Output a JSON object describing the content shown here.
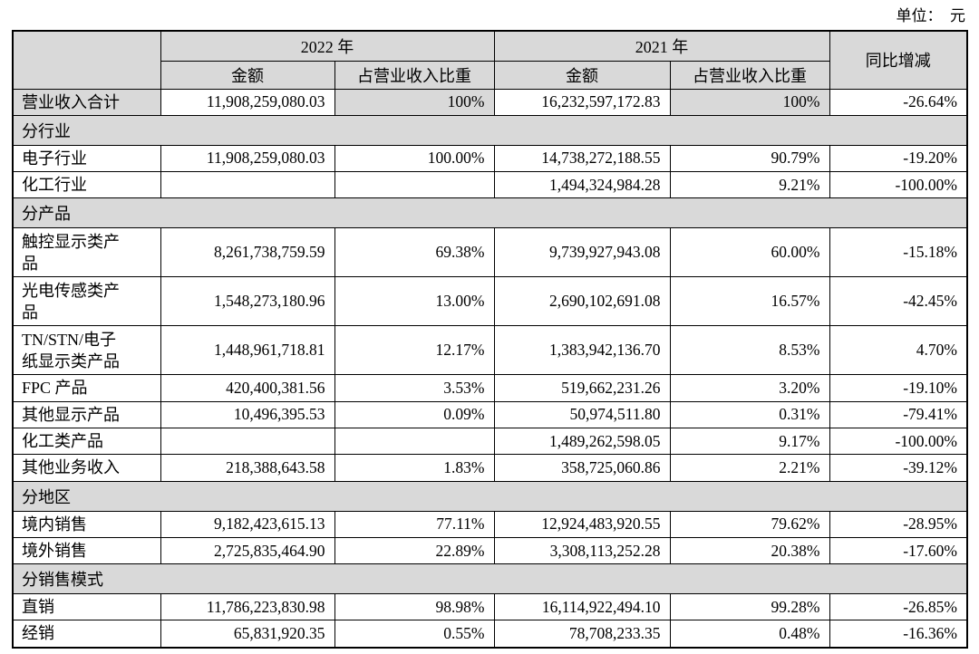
{
  "unit_label": "单位：  元",
  "colors": {
    "shade": "#d9d9d9",
    "border": "#000000",
    "background": "#ffffff"
  },
  "table": {
    "header": {
      "corner": "",
      "col_2022": "2022 年",
      "col_2021": "2021 年",
      "yoy": "同比增减",
      "amount": "金额",
      "share": "占营业收入比重"
    },
    "rows": [
      {
        "type": "data",
        "shaded": true,
        "label": "营业收入合计",
        "v": [
          "11,908,259,080.03",
          "100%",
          "16,232,597,172.83",
          "100%",
          "-26.64%"
        ]
      },
      {
        "type": "section",
        "label": "分行业"
      },
      {
        "type": "data",
        "label": "电子行业",
        "v": [
          "11,908,259,080.03",
          "100.00%",
          "14,738,272,188.55",
          "90.79%",
          "-19.20%"
        ]
      },
      {
        "type": "data",
        "label": "化工行业",
        "v": [
          "",
          "",
          "1,494,324,984.28",
          "9.21%",
          "-100.00%"
        ]
      },
      {
        "type": "section",
        "label": "分产品"
      },
      {
        "type": "data",
        "tall": true,
        "label": "触控显示类产品",
        "v": [
          "8,261,738,759.59",
          "69.38%",
          "9,739,927,943.08",
          "60.00%",
          "-15.18%"
        ]
      },
      {
        "type": "data",
        "tall": true,
        "label": "光电传感类产品",
        "v": [
          "1,548,273,180.96",
          "13.00%",
          "2,690,102,691.08",
          "16.57%",
          "-42.45%"
        ]
      },
      {
        "type": "data",
        "tall": true,
        "label": "TN/STN/电子纸显示类产品",
        "v": [
          "1,448,961,718.81",
          "12.17%",
          "1,383,942,136.70",
          "8.53%",
          "4.70%"
        ]
      },
      {
        "type": "data",
        "label": "FPC 产品",
        "v": [
          "420,400,381.56",
          "3.53%",
          "519,662,231.26",
          "3.20%",
          "-19.10%"
        ]
      },
      {
        "type": "data",
        "label": "其他显示产品",
        "v": [
          "10,496,395.53",
          "0.09%",
          "50,974,511.80",
          "0.31%",
          "-79.41%"
        ]
      },
      {
        "type": "data",
        "label": "化工类产品",
        "v": [
          "",
          "",
          "1,489,262,598.05",
          "9.17%",
          "-100.00%"
        ]
      },
      {
        "type": "data",
        "label": "其他业务收入",
        "v": [
          "218,388,643.58",
          "1.83%",
          "358,725,060.86",
          "2.21%",
          "-39.12%"
        ]
      },
      {
        "type": "section",
        "label": "分地区"
      },
      {
        "type": "data",
        "label": "境内销售",
        "v": [
          "9,182,423,615.13",
          "77.11%",
          "12,924,483,920.55",
          "79.62%",
          "-28.95%"
        ]
      },
      {
        "type": "data",
        "label": "境外销售",
        "v": [
          "2,725,835,464.90",
          "22.89%",
          "3,308,113,252.28",
          "20.38%",
          "-17.60%"
        ]
      },
      {
        "type": "section",
        "label": "分销售模式"
      },
      {
        "type": "data",
        "label": "直销",
        "v": [
          "11,786,223,830.98",
          "98.98%",
          "16,114,922,494.10",
          "99.28%",
          "-26.85%"
        ]
      },
      {
        "type": "data",
        "label": "经销",
        "v": [
          "65,831,920.35",
          "0.55%",
          "78,708,233.35",
          "0.48%",
          "-16.36%"
        ]
      }
    ]
  }
}
